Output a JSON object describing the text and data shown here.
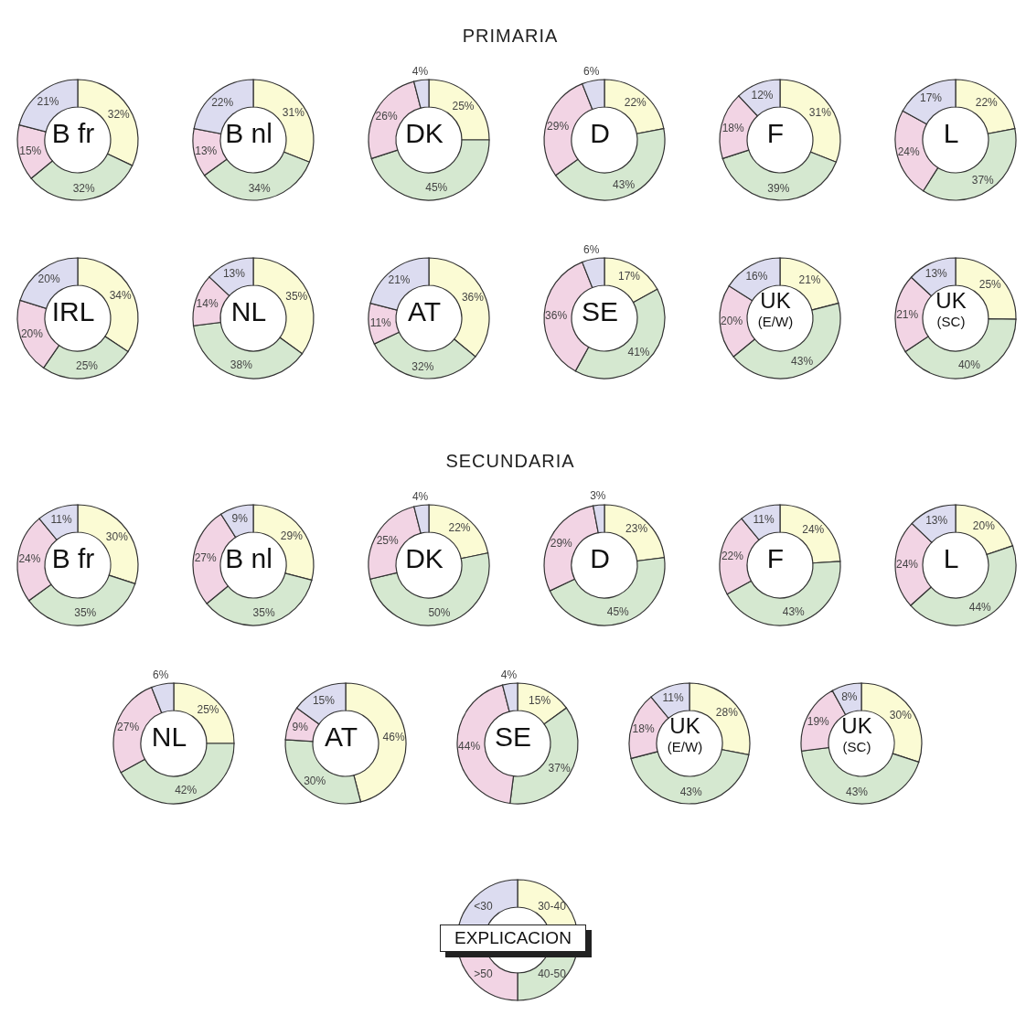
{
  "chart_data": [
    {
      "type": "donut",
      "title": "B fr",
      "annotations": [
        "PRIMARIA"
      ],
      "categories": [
        null,
        null,
        null,
        null
      ],
      "values": [
        32,
        32,
        15,
        21
      ],
      "value_labels": [
        "32%",
        "32%",
        "15%",
        "21%"
      ],
      "colors": [
        "#fbfbd4",
        "#d5e8d0",
        "#f2d4e4",
        "#dcdcf0"
      ]
    },
    {
      "type": "donut",
      "title": "B nl",
      "categories": [
        null,
        null,
        null,
        null
      ],
      "values": [
        31,
        34,
        13,
        22
      ],
      "value_labels": [
        "31%",
        "34%",
        "13%",
        "22%"
      ],
      "colors": [
        "#fbfbd4",
        "#d5e8d0",
        "#f2d4e4",
        "#dcdcf0"
      ]
    },
    {
      "type": "donut",
      "title": "DK",
      "categories": [
        null,
        null,
        null,
        null
      ],
      "values": [
        25,
        45,
        26,
        4
      ],
      "value_labels": [
        "25%",
        "45%",
        "26%",
        "4%"
      ],
      "colors": [
        "#fbfbd4",
        "#d5e8d0",
        "#f2d4e4",
        "#dcdcf0"
      ]
    },
    {
      "type": "donut",
      "title": "D",
      "categories": [
        null,
        null,
        null,
        null
      ],
      "values": [
        22,
        43,
        29,
        6
      ],
      "value_labels": [
        "22%",
        "43%",
        "29%",
        "6%"
      ],
      "colors": [
        "#fbfbd4",
        "#d5e8d0",
        "#f2d4e4",
        "#dcdcf0"
      ]
    },
    {
      "type": "donut",
      "title": "F",
      "categories": [
        null,
        null,
        null,
        null
      ],
      "values": [
        31,
        39,
        18,
        12
      ],
      "value_labels": [
        "31%",
        "39%",
        "18%",
        "12%"
      ],
      "colors": [
        "#fbfbd4",
        "#d5e8d0",
        "#f2d4e4",
        "#dcdcf0"
      ]
    },
    {
      "type": "donut",
      "title": "L",
      "categories": [
        null,
        null,
        null,
        null
      ],
      "values": [
        22,
        37,
        24,
        17
      ],
      "value_labels": [
        "22%",
        "37%",
        "24%",
        "17%"
      ],
      "colors": [
        "#fbfbd4",
        "#d5e8d0",
        "#f2d4e4",
        "#dcdcf0"
      ]
    },
    {
      "type": "donut",
      "title": "IRL",
      "categories": [
        null,
        null,
        null,
        null
      ],
      "values": [
        34,
        25,
        20,
        20
      ],
      "value_labels": [
        "34%",
        "25%",
        "20%",
        "20%"
      ],
      "colors": [
        "#fbfbd4",
        "#d5e8d0",
        "#f2d4e4",
        "#dcdcf0"
      ]
    },
    {
      "type": "donut",
      "title": "NL",
      "categories": [
        null,
        null,
        null,
        null
      ],
      "values": [
        35,
        38,
        14,
        13
      ],
      "value_labels": [
        "35%",
        "38%",
        "14%",
        "13%"
      ],
      "colors": [
        "#fbfbd4",
        "#d5e8d0",
        "#f2d4e4",
        "#dcdcf0"
      ]
    },
    {
      "type": "donut",
      "title": "AT",
      "categories": [
        null,
        null,
        null,
        null
      ],
      "values": [
        36,
        32,
        11,
        21
      ],
      "value_labels": [
        "36%",
        "32%",
        "11%",
        "21%"
      ],
      "colors": [
        "#fbfbd4",
        "#d5e8d0",
        "#f2d4e4",
        "#dcdcf0"
      ]
    },
    {
      "type": "donut",
      "title": "SE",
      "categories": [
        null,
        null,
        null,
        null
      ],
      "values": [
        17,
        41,
        36,
        6
      ],
      "value_labels": [
        "17%",
        "41%",
        "36%",
        "6%"
      ],
      "colors": [
        "#fbfbd4",
        "#d5e8d0",
        "#f2d4e4",
        "#dcdcf0"
      ]
    },
    {
      "type": "donut",
      "title": "UK\n(E/W)",
      "categories": [
        null,
        null,
        null,
        null
      ],
      "values": [
        21,
        43,
        20,
        16
      ],
      "value_labels": [
        "21%",
        "43%",
        "20%",
        "16%"
      ],
      "colors": [
        "#fbfbd4",
        "#d5e8d0",
        "#f2d4e4",
        "#dcdcf0"
      ]
    },
    {
      "type": "donut",
      "title": "UK\n(SC)",
      "categories": [
        null,
        null,
        null,
        null
      ],
      "values": [
        25,
        40,
        21,
        13
      ],
      "value_labels": [
        "25%",
        "40%",
        "21%",
        "13%"
      ],
      "colors": [
        "#fbfbd4",
        "#d5e8d0",
        "#f2d4e4",
        "#dcdcf0"
      ]
    },
    {
      "type": "donut",
      "title": "B fr",
      "annotations": [
        "SECUNDARIA"
      ],
      "categories": [
        null,
        null,
        null,
        null
      ],
      "values": [
        30,
        35,
        24,
        11
      ],
      "value_labels": [
        "30%",
        "35%",
        "24%",
        "11%"
      ],
      "colors": [
        "#fbfbd4",
        "#d5e8d0",
        "#f2d4e4",
        "#dcdcf0"
      ]
    },
    {
      "type": "donut",
      "title": "B nl",
      "categories": [
        null,
        null,
        null,
        null
      ],
      "values": [
        29,
        35,
        27,
        9
      ],
      "value_labels": [
        "29%",
        "35%",
        "27%",
        "9%"
      ],
      "colors": [
        "#fbfbd4",
        "#d5e8d0",
        "#f2d4e4",
        "#dcdcf0"
      ]
    },
    {
      "type": "donut",
      "title": "DK",
      "categories": [
        null,
        null,
        null,
        null
      ],
      "values": [
        22,
        50,
        25,
        4
      ],
      "value_labels": [
        "22%",
        "50%",
        "25%",
        "4%"
      ],
      "colors": [
        "#fbfbd4",
        "#d5e8d0",
        "#f2d4e4",
        "#dcdcf0"
      ]
    },
    {
      "type": "donut",
      "title": "D",
      "categories": [
        null,
        null,
        null,
        null
      ],
      "values": [
        23,
        45,
        29,
        3
      ],
      "value_labels": [
        "23%",
        "45%",
        "29%",
        "3%"
      ],
      "colors": [
        "#fbfbd4",
        "#d5e8d0",
        "#f2d4e4",
        "#dcdcf0"
      ]
    },
    {
      "type": "donut",
      "title": "F",
      "categories": [
        null,
        null,
        null,
        null
      ],
      "values": [
        24,
        43,
        22,
        11
      ],
      "value_labels": [
        "24%",
        "43%",
        "22%",
        "11%"
      ],
      "colors": [
        "#fbfbd4",
        "#d5e8d0",
        "#f2d4e4",
        "#dcdcf0"
      ]
    },
    {
      "type": "donut",
      "title": "L",
      "categories": [
        null,
        null,
        null,
        null
      ],
      "values": [
        20,
        44,
        24,
        13
      ],
      "value_labels": [
        "20%",
        "44%",
        "24%",
        "13%"
      ],
      "colors": [
        "#fbfbd4",
        "#d5e8d0",
        "#f2d4e4",
        "#dcdcf0"
      ]
    },
    {
      "type": "donut",
      "title": "NL",
      "categories": [
        null,
        null,
        null,
        null
      ],
      "values": [
        25,
        42,
        27,
        6
      ],
      "value_labels": [
        "25%",
        "42%",
        "27%",
        "6%"
      ],
      "colors": [
        "#fbfbd4",
        "#d5e8d0",
        "#f2d4e4",
        "#dcdcf0"
      ]
    },
    {
      "type": "donut",
      "title": "AT",
      "categories": [
        null,
        null,
        null,
        null
      ],
      "values": [
        46,
        30,
        9,
        15
      ],
      "value_labels": [
        "46%",
        "30%",
        "9%",
        "15%"
      ],
      "colors": [
        "#fbfbd4",
        "#d5e8d0",
        "#f2d4e4",
        "#dcdcf0"
      ]
    },
    {
      "type": "donut",
      "title": "SE",
      "categories": [
        null,
        null,
        null,
        null
      ],
      "values": [
        15,
        37,
        44,
        4
      ],
      "value_labels": [
        "15%",
        "37%",
        "44%",
        "4%"
      ],
      "colors": [
        "#fbfbd4",
        "#d5e8d0",
        "#f2d4e4",
        "#dcdcf0"
      ]
    },
    {
      "type": "donut",
      "title": "UK\n(E/W)",
      "categories": [
        null,
        null,
        null,
        null
      ],
      "values": [
        28,
        43,
        18,
        11
      ],
      "value_labels": [
        "28%",
        "43%",
        "18%",
        "11%"
      ],
      "colors": [
        "#fbfbd4",
        "#d5e8d0",
        "#f2d4e4",
        "#dcdcf0"
      ]
    },
    {
      "type": "donut",
      "title": "UK\n(SC)",
      "categories": [
        null,
        null,
        null,
        null
      ],
      "values": [
        30,
        43,
        19,
        8
      ],
      "value_labels": [
        "30%",
        "43%",
        "19%",
        "8%"
      ],
      "colors": [
        "#fbfbd4",
        "#d5e8d0",
        "#f2d4e4",
        "#dcdcf0"
      ]
    },
    {
      "type": "donut",
      "title": "EXPLICACION",
      "categories": [
        "30-40",
        "40-50",
        ">50",
        "<30"
      ],
      "values": [
        25,
        25,
        25,
        25
      ],
      "colors": [
        "#fbfbd4",
        "#d5e8d0",
        "#f2d4e4",
        "#dcdcf0"
      ]
    }
  ]
}
